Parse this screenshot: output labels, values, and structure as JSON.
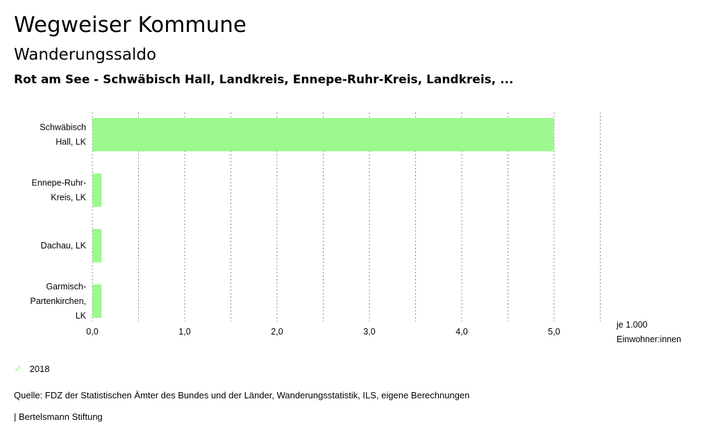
{
  "header": {
    "title": "Wegweiser Kommune",
    "subtitle": "Wanderungssaldo",
    "regions": "Rot am See - Schwäbisch Hall, Landkreis, Ennepe-Ruhr-Kreis, Landkreis, ..."
  },
  "chart_data": {
    "type": "bar",
    "orientation": "horizontal",
    "categories": [
      [
        "Schwäbisch",
        "Hall, LK"
      ],
      [
        "Ennepe-Ruhr-",
        "Kreis, LK"
      ],
      [
        "Dachau, LK"
      ],
      [
        "Garmisch-",
        "Partenkirchen,",
        "LK"
      ]
    ],
    "series": [
      {
        "name": "2018",
        "values": [
          5.0,
          0.1,
          0.1,
          0.1
        ],
        "color": "#9cf88f"
      }
    ],
    "xlim": [
      0,
      5.5
    ],
    "xticks": [
      "0,0",
      "1,0",
      "2,0",
      "3,0",
      "4,0",
      "5,0"
    ],
    "xtick_values": [
      0,
      1,
      2,
      3,
      4,
      5
    ],
    "unit_label": [
      "je 1.000",
      "Einwohner:innen"
    ],
    "grid": true
  },
  "legend": {
    "label": "2018",
    "icon": "check-icon"
  },
  "footer": {
    "source": "Quelle: FDZ der Statistischen Ämter des Bundes und der Länder, Wanderungsstatistik, ILS, eigene Berechnungen",
    "brand": "| Bertelsmann Stiftung"
  }
}
